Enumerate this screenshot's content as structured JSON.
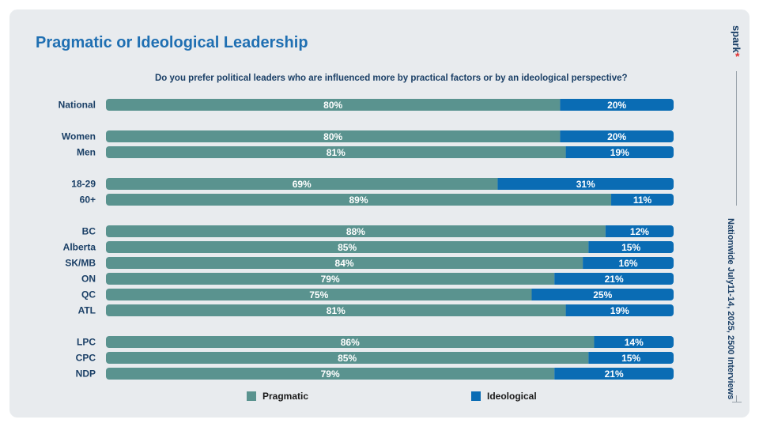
{
  "title": "Pragmatic or Ideological Leadership",
  "question": "Do you prefer political leaders who are influenced more by practical factors or by an ideological perspective?",
  "brand": "spark",
  "source": "Nationwide July11-14, 2025, 2500 Interviews",
  "colors": {
    "pragmatic": "#5a938f",
    "ideological": "#0a6cb4"
  },
  "chart_data": {
    "type": "bar",
    "orientation": "horizontal",
    "stacked": true,
    "categories": [
      "National",
      "Women",
      "Men",
      "18-29",
      "60+",
      "BC",
      "Alberta",
      "SK/MB",
      "ON",
      "QC",
      "ATL",
      "LPC",
      "CPC",
      "NDP"
    ],
    "series": [
      {
        "name": "Pragmatic",
        "values": [
          80,
          80,
          81,
          69,
          89,
          88,
          85,
          84,
          79,
          75,
          81,
          86,
          85,
          79
        ]
      },
      {
        "name": "Ideological",
        "values": [
          20,
          20,
          19,
          31,
          11,
          12,
          15,
          16,
          21,
          25,
          19,
          14,
          15,
          21
        ]
      }
    ],
    "value_labels": [
      [
        "80%",
        "80%",
        "81%",
        "69%",
        "89%",
        "88%",
        "85%",
        "84%",
        "79%",
        "75%",
        "81%",
        "86%",
        "85%",
        "79%"
      ],
      [
        "20%",
        "20%",
        "19%",
        "31%",
        "11%",
        "12%",
        "15%",
        "16%",
        "21%",
        "25%",
        "19%",
        "14%",
        "15%",
        "21%"
      ]
    ],
    "groups": [
      [
        0
      ],
      [
        1,
        2
      ],
      [
        3,
        4
      ],
      [
        5,
        6,
        7,
        8,
        9,
        10
      ],
      [
        11,
        12,
        13
      ]
    ],
    "xlim": [
      0,
      100
    ],
    "legend": "bottom"
  }
}
